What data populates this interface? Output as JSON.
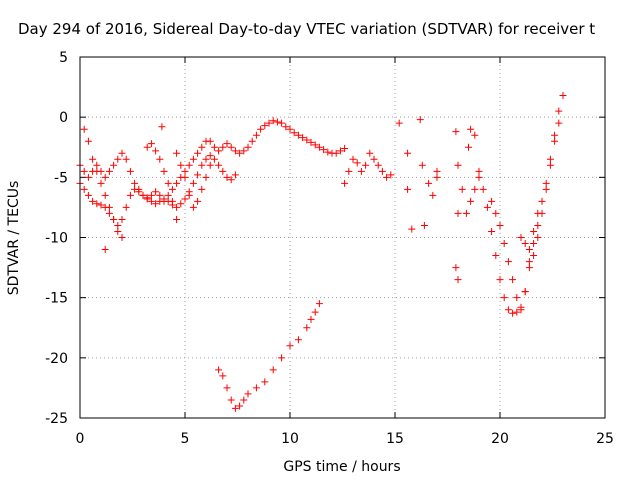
{
  "chart_data": {
    "type": "scatter",
    "title": "Day 294 of 2016, Sidereal Day-to-day VTEC variation (SDTVAR) for receiver t",
    "xlabel": "GPS time / hours",
    "ylabel": "SDTVAR / TECUs",
    "xlim": [
      0,
      25
    ],
    "ylim": [
      -25,
      5
    ],
    "xticks": [
      0,
      5,
      10,
      15,
      20,
      25
    ],
    "yticks": [
      5,
      0,
      -5,
      -10,
      -15,
      -20,
      -25
    ],
    "x_tick_labels": [
      "0",
      "5",
      "10",
      "15",
      "20",
      "25"
    ],
    "y_tick_labels": [
      "5",
      "0",
      "-5",
      "-10",
      "-15",
      "-20",
      "-25"
    ],
    "grid": true,
    "legend": "none",
    "marker": "plus",
    "color": "#ff0000",
    "series": [
      {
        "x": [
          0.0,
          0.2,
          0.4,
          0.6,
          0.8,
          1.0,
          1.2,
          1.4,
          1.6,
          1.8,
          2.0,
          2.2,
          2.4,
          2.6,
          2.8,
          3.0,
          3.2,
          3.4,
          3.6,
          3.8,
          4.0,
          4.2,
          4.4,
          4.6,
          4.8,
          5.0,
          5.2,
          5.4,
          5.6,
          5.8,
          6.0,
          6.2,
          6.4,
          6.6,
          6.8,
          7.0,
          7.2,
          7.4,
          7.6,
          7.8,
          8.0,
          8.2,
          8.4,
          8.6,
          8.8,
          9.0,
          9.2,
          9.4,
          9.6,
          9.8,
          10.0,
          10.2,
          10.4,
          10.6,
          10.8,
          11.0,
          11.2,
          11.4,
          11.6,
          11.8,
          12.0,
          12.2,
          12.4,
          12.6
        ],
        "y": [
          -4.0,
          -4.5,
          -5.0,
          -4.5,
          -4.0,
          -4.5,
          -5.0,
          -4.5,
          -4.0,
          -3.5,
          -3.0,
          -3.5,
          -4.5,
          -5.5,
          -6.0,
          -6.5,
          -6.8,
          -6.5,
          -6.2,
          -6.5,
          -7.0,
          -6.5,
          -6.0,
          -5.5,
          -5.0,
          -4.5,
          -4.0,
          -3.5,
          -3.0,
          -2.5,
          -2.0,
          -2.0,
          -2.5,
          -2.8,
          -2.5,
          -2.2,
          -2.5,
          -2.8,
          -3.0,
          -2.8,
          -2.5,
          -2.0,
          -1.5,
          -1.0,
          -0.7,
          -0.5,
          -0.3,
          -0.4,
          -0.5,
          -0.8,
          -1.0,
          -1.3,
          -1.5,
          -1.7,
          -1.9,
          -2.1,
          -2.3,
          -2.5,
          -2.7,
          -2.9,
          -3.0,
          -3.0,
          -2.8,
          -2.6
        ]
      },
      {
        "x": [
          0.0,
          0.2,
          0.4,
          0.6,
          0.8,
          1.0,
          1.2,
          1.4,
          1.6,
          1.8,
          2.0,
          2.2,
          2.4,
          2.6,
          2.8,
          3.0,
          3.2,
          3.4,
          3.6,
          3.8,
          4.0,
          4.2,
          4.4,
          4.6,
          4.8,
          5.0,
          5.2,
          5.4,
          5.6,
          5.8,
          6.0,
          6.2,
          6.4,
          6.6,
          6.8,
          7.0,
          7.2,
          7.4
        ],
        "y": [
          -5.5,
          -6.0,
          -6.5,
          -7.0,
          -7.2,
          -7.3,
          -7.5,
          -8.0,
          -8.5,
          -9.0,
          -8.5,
          -7.5,
          -6.5,
          -6.0,
          -6.2,
          -6.5,
          -6.7,
          -7.0,
          -7.2,
          -7.0,
          -6.8,
          -7.0,
          -7.3,
          -7.5,
          -7.2,
          -6.8,
          -6.2,
          -5.5,
          -4.8,
          -4.0,
          -3.5,
          -3.2,
          -3.5,
          -4.0,
          -4.5,
          -5.0,
          -5.2,
          -4.8
        ]
      },
      {
        "x": [
          0.2,
          0.4,
          0.6,
          0.8,
          1.0,
          1.2,
          1.4,
          1.6,
          1.8,
          2.0
        ],
        "y": [
          -1.0,
          -2.0,
          -3.5,
          -4.5,
          -5.5,
          -6.5,
          -7.5,
          -8.5,
          -9.5,
          -10.0
        ]
      },
      {
        "x": [
          3.2,
          3.4,
          3.6,
          3.8,
          4.0,
          4.2,
          4.4,
          4.6
        ],
        "y": [
          -2.5,
          -2.2,
          -2.8,
          -3.5,
          -4.5,
          -5.5,
          -7.0,
          -8.5
        ]
      },
      {
        "x": [
          4.6,
          4.8,
          5.0,
          5.2,
          5.4,
          5.6,
          5.8,
          6.0,
          6.2
        ],
        "y": [
          -3.0,
          -4.0,
          -5.0,
          -6.5,
          -7.5,
          -7.0,
          -6.0,
          -5.0,
          -4.0
        ]
      },
      {
        "x": [
          6.6,
          6.8,
          7.0,
          7.2,
          7.4,
          7.6,
          7.8,
          8.0,
          8.4,
          8.8,
          9.2,
          9.6,
          10.0,
          10.4,
          10.8,
          11.0,
          11.2,
          11.4
        ],
        "y": [
          -21.0,
          -21.5,
          -22.5,
          -23.5,
          -24.2,
          -24.0,
          -23.5,
          -23.0,
          -22.5,
          -22.0,
          -21.0,
          -20.0,
          -19.0,
          -18.5,
          -17.5,
          -16.8,
          -16.2,
          -15.5
        ]
      },
      {
        "x": [
          12.6,
          12.8,
          13.0,
          13.2,
          13.4,
          13.6,
          13.8,
          14.0,
          14.2,
          14.4,
          14.6,
          14.8
        ],
        "y": [
          -5.5,
          -4.5,
          -3.5,
          -3.8,
          -4.5,
          -4.0,
          -3.0,
          -3.5,
          -4.0,
          -4.5,
          -5.0,
          -4.8
        ]
      },
      {
        "x": [
          18.0,
          18.2,
          18.4,
          18.6,
          18.8,
          19.0,
          19.2,
          19.4,
          19.6,
          19.8,
          20.0,
          20.2,
          20.4,
          20.6,
          20.8,
          21.0,
          21.2,
          21.4,
          21.6,
          21.8,
          22.0,
          22.2,
          22.4,
          22.6,
          22.8,
          23.0
        ],
        "y": [
          -4.0,
          -6.0,
          -8.0,
          -7.0,
          -6.0,
          -5.0,
          -6.0,
          -7.5,
          -9.5,
          -11.5,
          -13.5,
          -15.0,
          -16.0,
          -16.3,
          -16.2,
          -15.8,
          -14.5,
          -12.0,
          -9.5,
          -8.0,
          -7.0,
          -5.5,
          -3.5,
          -1.5,
          0.5,
          1.8
        ]
      },
      {
        "x": [
          19.6,
          19.8,
          20.0,
          20.2,
          20.4,
          20.6,
          20.8,
          21.0,
          21.2,
          21.4,
          21.6,
          21.8
        ],
        "y": [
          -7.0,
          -8.0,
          -9.0,
          -10.5,
          -12.0,
          -13.5,
          -15.0,
          -16.0,
          -14.5,
          -12.5,
          -10.5,
          -9.0
        ]
      },
      {
        "x": [
          21.0,
          21.2,
          21.4,
          21.6,
          21.8,
          22.0,
          22.2,
          22.4,
          22.6,
          22.8
        ],
        "y": [
          -10.0,
          -10.5,
          -11.0,
          -11.5,
          -10.0,
          -8.0,
          -6.0,
          -4.0,
          -2.0,
          -0.5
        ]
      },
      {
        "x": [
          1.2,
          3.9,
          15.2,
          15.6,
          15.6,
          15.8,
          16.2,
          16.3,
          16.4,
          16.6,
          16.8,
          17.0,
          17.0,
          17.9,
          17.9,
          18.0,
          18.0,
          18.5,
          18.6,
          18.8,
          19.0
        ],
        "y": [
          -11.0,
          -0.8,
          -0.5,
          -3.0,
          -6.0,
          -9.3,
          -0.2,
          -4.0,
          -9.0,
          -5.5,
          -6.5,
          -4.5,
          -5.0,
          -1.2,
          -12.5,
          -13.5,
          -8.0,
          -2.5,
          -1.0,
          -1.5,
          -4.5
        ]
      }
    ]
  }
}
